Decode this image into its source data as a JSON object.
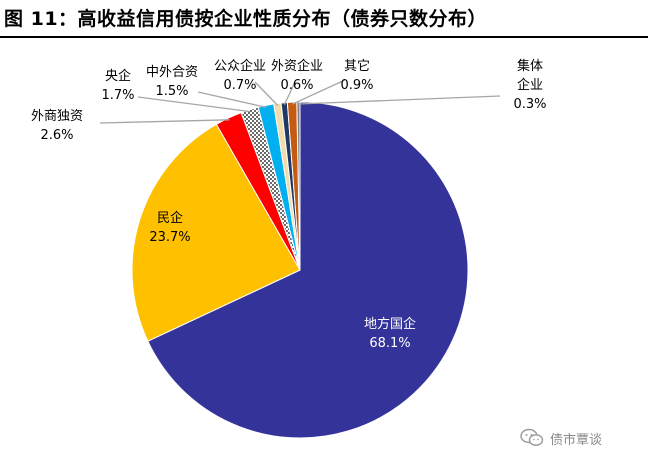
{
  "title": "图 11：高收益信用债按企业性质分布（债券只数分布）",
  "chart_data": {
    "type": "pie",
    "title": "图 11：高收益信用债按企业性质分布（债券只数分布）",
    "unit": "%",
    "slices": [
      {
        "label": "地方国企",
        "value": 68.1,
        "display": "68.1%",
        "color": "#333399",
        "label_color": "#ffffff"
      },
      {
        "label": "民企",
        "value": 23.7,
        "display": "23.7%",
        "color": "#ffc000",
        "label_color": "#000000"
      },
      {
        "label": "外商独资",
        "value": 2.6,
        "display": "2.6%",
        "color": "#ff0000",
        "label_color": "#000000"
      },
      {
        "label": "央企",
        "value": 1.7,
        "display": "1.7%",
        "color": "#ffffff",
        "pattern": "dots",
        "label_color": "#000000"
      },
      {
        "label": "中外合资",
        "value": 1.5,
        "display": "1.5%",
        "color": "#00b0f0",
        "label_color": "#000000"
      },
      {
        "label": "公众企业",
        "value": 0.7,
        "display": "0.7%",
        "color": "#f2dcaa",
        "label_color": "#000000"
      },
      {
        "label": "外资企业",
        "value": 0.6,
        "display": "0.6%",
        "color": "#1f3864",
        "label_color": "#000000"
      },
      {
        "label": "其它",
        "value": 0.9,
        "display": "0.9%",
        "color": "#c55a11",
        "label_color": "#000000"
      },
      {
        "label": "集体企业",
        "value": 0.3,
        "display": "0.3%",
        "color": "#808080",
        "label_color": "#000000"
      }
    ]
  },
  "watermark": {
    "text": "债市覃谈",
    "icon": "wechat-icon"
  }
}
